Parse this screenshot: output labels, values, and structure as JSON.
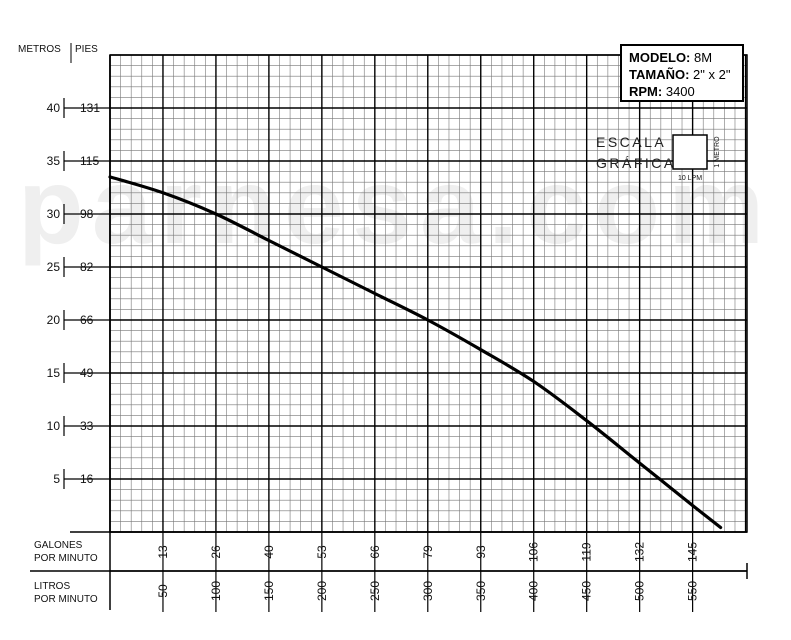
{
  "watermark": "parnesa.com",
  "chart_data": {
    "type": "line",
    "title": "",
    "y_axis": {
      "header_left": "METROS",
      "header_right": "PIES",
      "metros_ticks": [
        5,
        10,
        15,
        20,
        25,
        30,
        35,
        40
      ],
      "pies_ticks": [
        16,
        33,
        49,
        66,
        82,
        98,
        115,
        131
      ],
      "ylim_metros": [
        0,
        45
      ]
    },
    "x_axis": {
      "galones_label": "GALONES POR MINUTO",
      "galones_ticks": [
        13,
        26,
        40,
        53,
        66,
        79,
        93,
        106,
        119,
        132,
        145
      ],
      "litros_label": "LITROS POR MINUTO",
      "litros_ticks": [
        50,
        100,
        150,
        200,
        250,
        300,
        350,
        400,
        450,
        500,
        550
      ],
      "xlim_litros": [
        0,
        600
      ]
    },
    "grid": true,
    "series": [
      {
        "x": [
          0,
          50,
          100,
          150,
          200,
          250,
          300,
          350,
          400,
          450,
          500,
          550,
          565
        ],
        "y": [
          33.5,
          32,
          30,
          27.5,
          25,
          22.5,
          20,
          17.2,
          14.2,
          10.5,
          6.5,
          2.5,
          2.5
        ]
      }
    ]
  },
  "info_box": {
    "modelo_label": "MODELO:",
    "modelo_value": "8M",
    "tamano_label": "TAMAÑO:",
    "tamano_value": "2\" x 2\"",
    "rpm_label": "RPM:",
    "rpm_value": "3400"
  },
  "scale_legend": {
    "line1": "ESCALA",
    "line2": "GRÁFICA",
    "x_unit": "10 LPM",
    "y_unit": "1 METRO"
  }
}
